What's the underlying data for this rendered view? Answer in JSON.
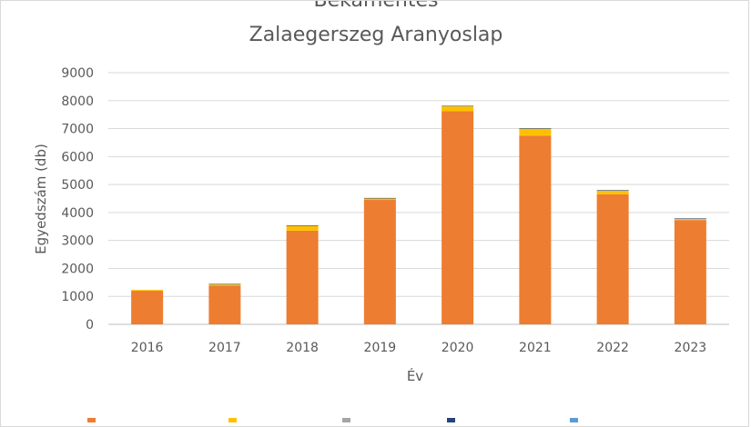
{
  "chart_data": {
    "type": "bar",
    "stacked": true,
    "title": "Bekamentes",
    "subtitle": "Zalaegerszeg Aranyoslap",
    "xlabel": "Év",
    "ylabel": "Egyedszám (db)",
    "ylim": [
      0,
      9000
    ],
    "yticks": [
      0,
      1000,
      2000,
      3000,
      4000,
      5000,
      6000,
      7000,
      8000,
      9000
    ],
    "grid": true,
    "legend_position": "bottom",
    "categories": [
      "2016",
      "2017",
      "2018",
      "2019",
      "2020",
      "2021",
      "2022",
      "2023"
    ],
    "series": [
      {
        "color": "#ED7D31",
        "values": [
          1200,
          1380,
          3350,
          4450,
          7620,
          6750,
          4650,
          3730
        ]
      },
      {
        "color": "#FFC000",
        "values": [
          30,
          50,
          180,
          60,
          180,
          250,
          140,
          50
        ]
      },
      {
        "color": "#A5A5A5",
        "values": [
          0,
          10,
          5,
          5,
          10,
          10,
          5,
          5
        ]
      },
      {
        "color": "#264478",
        "values": [
          0,
          5,
          5,
          5,
          5,
          5,
          5,
          5
        ]
      }
    ]
  }
}
